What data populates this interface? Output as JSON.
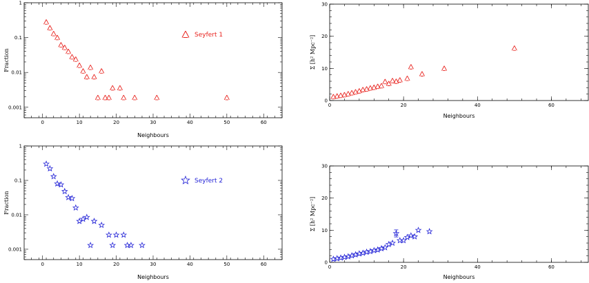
{
  "chart_data": [
    {
      "id": "p1",
      "type": "scatter",
      "xlabel": "Neighbours",
      "ylabel": "Fraction",
      "xlim": [
        -5,
        65
      ],
      "ylim": [
        0.0005,
        1
      ],
      "yscale": "log",
      "xticks": [
        "0",
        "10",
        "20",
        "30",
        "40",
        "50",
        "60"
      ],
      "yticks": [
        "0.001",
        "0.01",
        "0.1",
        "1"
      ],
      "marker": "triangle",
      "color": "#e8231e",
      "legend": {
        "label": "Seyfert 1"
      },
      "points": [
        [
          1,
          0.28
        ],
        [
          2,
          0.19
        ],
        [
          3,
          0.13
        ],
        [
          4,
          0.1
        ],
        [
          5,
          0.062
        ],
        [
          6,
          0.052
        ],
        [
          7,
          0.04
        ],
        [
          8,
          0.028
        ],
        [
          9,
          0.024
        ],
        [
          10,
          0.016
        ],
        [
          11,
          0.011
        ],
        [
          12,
          0.0075
        ],
        [
          13,
          0.014
        ],
        [
          14,
          0.0075
        ],
        [
          15,
          0.0019
        ],
        [
          16,
          0.011
        ],
        [
          17,
          0.0019
        ],
        [
          18,
          0.0019
        ],
        [
          19,
          0.0036
        ],
        [
          21,
          0.0036
        ],
        [
          22,
          0.0019
        ],
        [
          25,
          0.0019
        ],
        [
          31,
          0.0019
        ],
        [
          50,
          0.0019
        ]
      ]
    },
    {
      "id": "p2",
      "type": "scatter",
      "xlabel": "Neighbours",
      "ylabel": "Σ [h² Mpc⁻²]",
      "xlim": [
        0,
        70
      ],
      "ylim": [
        0,
        30
      ],
      "xticks": [
        "0",
        "20",
        "40",
        "60"
      ],
      "yticks": [
        "0",
        "10",
        "20",
        "30"
      ],
      "marker": "triangle",
      "color": "#e8231e",
      "points": [
        [
          1,
          1.2
        ],
        [
          2,
          1.4
        ],
        [
          3,
          1.6
        ],
        [
          4,
          1.8
        ],
        [
          5,
          2.1
        ],
        [
          6,
          2.4
        ],
        [
          7,
          2.7
        ],
        [
          8,
          3.0
        ],
        [
          9,
          3.4
        ],
        [
          10,
          3.6
        ],
        [
          11,
          3.9
        ],
        [
          12,
          4.1
        ],
        [
          13,
          4.4
        ],
        [
          14,
          4.6
        ],
        [
          15,
          5.9
        ],
        [
          16,
          5.3
        ],
        [
          17,
          6.2
        ],
        [
          18,
          6.0
        ],
        [
          19,
          6.4
        ],
        [
          21,
          6.9
        ],
        [
          22,
          10.5
        ],
        [
          25,
          8.3
        ],
        [
          31,
          10.0
        ],
        [
          50,
          16.3
        ]
      ]
    },
    {
      "id": "p3",
      "type": "scatter",
      "xlabel": "Neighbours",
      "ylabel": "Fraction",
      "xlim": [
        -5,
        65
      ],
      "ylim": [
        0.0005,
        1
      ],
      "yscale": "log",
      "xticks": [
        "0",
        "10",
        "20",
        "30",
        "40",
        "50",
        "60"
      ],
      "yticks": [
        "0.001",
        "0.01",
        "0.1",
        "1"
      ],
      "marker": "star",
      "color": "#1f1fd6",
      "legend": {
        "label": "Seyfert 2"
      },
      "points": [
        [
          1,
          0.3
        ],
        [
          2,
          0.22
        ],
        [
          3,
          0.13
        ],
        [
          4,
          0.08
        ],
        [
          5,
          0.075
        ],
        [
          6,
          0.048
        ],
        [
          7,
          0.032
        ],
        [
          8,
          0.03
        ],
        [
          9,
          0.016
        ],
        [
          10,
          0.0065
        ],
        [
          11,
          0.0075
        ],
        [
          12,
          0.0085
        ],
        [
          13,
          0.0013
        ],
        [
          14,
          0.0065
        ],
        [
          16,
          0.005
        ],
        [
          18,
          0.0026
        ],
        [
          19,
          0.0013
        ],
        [
          20,
          0.0026
        ],
        [
          22,
          0.0026
        ],
        [
          23,
          0.0013
        ],
        [
          24,
          0.0013
        ],
        [
          27,
          0.0013
        ]
      ]
    },
    {
      "id": "p4",
      "type": "scatter",
      "xlabel": "Neighbours",
      "ylabel": "Σ [h² Mpc⁻²]",
      "xlim": [
        0,
        70
      ],
      "ylim": [
        0,
        30
      ],
      "xticks": [
        "0",
        "20",
        "40",
        "60"
      ],
      "yticks": [
        "0",
        "10",
        "20",
        "30"
      ],
      "marker": "star",
      "color": "#1f1fd6",
      "points": [
        [
          1,
          1.0
        ],
        [
          2,
          1.2
        ],
        [
          3,
          1.4
        ],
        [
          4,
          1.6
        ],
        [
          5,
          1.8
        ],
        [
          6,
          2.1
        ],
        [
          7,
          2.4
        ],
        [
          8,
          2.7
        ],
        [
          9,
          2.9
        ],
        [
          10,
          3.2
        ],
        [
          11,
          3.4
        ],
        [
          12,
          3.7
        ],
        [
          13,
          3.9
        ],
        [
          14,
          4.3
        ],
        [
          15,
          4.6
        ],
        [
          16,
          5.6
        ],
        [
          17,
          6.0
        ],
        [
          18,
          9.0
        ],
        [
          19,
          6.8
        ],
        [
          20,
          6.8
        ],
        [
          21,
          7.8
        ],
        [
          22,
          8.3
        ],
        [
          23,
          8.0
        ],
        [
          24,
          10.0
        ],
        [
          27,
          9.6
        ]
      ],
      "errorbar": {
        "x": 18,
        "y": 9.0,
        "err": 1.1
      }
    }
  ]
}
